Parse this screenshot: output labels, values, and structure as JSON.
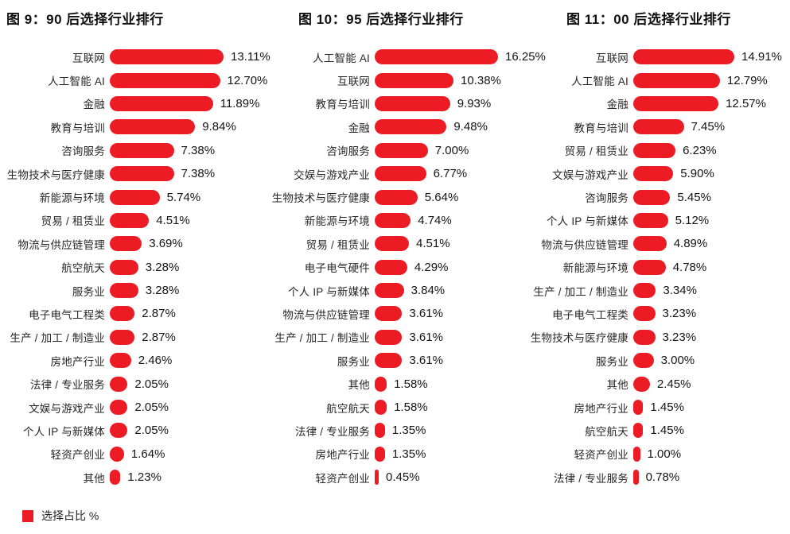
{
  "colors": {
    "bar_red": "#ed1c24",
    "title_text": "#111111",
    "label_text": "#272727",
    "value_text": "#141414"
  },
  "legend": {
    "label": "选择占比 %"
  },
  "chart_data": [
    {
      "type": "bar",
      "orientation": "horizontal",
      "title": "图 9：90 后选择行业排行",
      "unit": "%",
      "xlim": [
        0,
        13.11
      ],
      "grid": false,
      "categories": [
        "互联网",
        "人工智能 AI",
        "金融",
        "教育与培训",
        "咨询服务",
        "生物技术与医疗健康",
        "新能源与环境",
        "贸易 / 租赁业",
        "物流与供应链管理",
        "航空航天",
        "服务业",
        "电子电气工程类",
        "生产 / 加工 / 制造业",
        "房地产行业",
        "法律 / 专业服务",
        "文娱与游戏产业",
        "个人 IP 与新媒体",
        "轻资产创业",
        "其他"
      ],
      "values": [
        13.11,
        12.7,
        11.89,
        9.84,
        7.38,
        7.38,
        5.74,
        4.51,
        3.69,
        3.28,
        3.28,
        2.87,
        2.87,
        2.46,
        2.05,
        2.05,
        2.05,
        1.64,
        1.23
      ],
      "value_labels": [
        "13.11%",
        "12.70%",
        "11.89%",
        "9.84%",
        "7.38%",
        "7.38%",
        "5.74%",
        "4.51%",
        "3.69%",
        "3.28%",
        "3.28%",
        "2.87%",
        "2.87%",
        "2.46%",
        "2.05%",
        "2.05%",
        "2.05%",
        "1.64%",
        "1.23%"
      ]
    },
    {
      "type": "bar",
      "orientation": "horizontal",
      "title": "图 10：95 后选择行业排行",
      "unit": "%",
      "xlim": [
        0,
        16.25
      ],
      "grid": false,
      "categories": [
        "人工智能 AI",
        "互联网",
        "教育与培训",
        "金融",
        "咨询服务",
        "交娱与游戏产业",
        "生物技术与医疗健康",
        "新能源与环境",
        "贸易 / 租赁业",
        "电子电气硬件",
        "个人 IP 与新媒体",
        "物流与供应链管理",
        "生产 / 加工 / 制造业",
        "服务业",
        "其他",
        "航空航天",
        "法律 / 专业服务",
        "房地产行业",
        "轻资产创业"
      ],
      "values": [
        16.25,
        10.38,
        9.93,
        9.48,
        7.0,
        6.77,
        5.64,
        4.74,
        4.51,
        4.29,
        3.84,
        3.61,
        3.61,
        3.61,
        1.58,
        1.58,
        1.35,
        1.35,
        0.45
      ],
      "value_labels": [
        "16.25%",
        "10.38%",
        "9.93%",
        "9.48%",
        "7.00%",
        "6.77%",
        "5.64%",
        "4.74%",
        "4.51%",
        "4.29%",
        "3.84%",
        "3.61%",
        "3.61%",
        "3.61%",
        "1.58%",
        "1.58%",
        "1.35%",
        "1.35%",
        "0.45%"
      ]
    },
    {
      "type": "bar",
      "orientation": "horizontal",
      "title": "图 11：00 后选择行业排行",
      "unit": "%",
      "xlim": [
        0,
        14.91
      ],
      "grid": false,
      "categories": [
        "互联网",
        "人工智能 AI",
        "金融",
        "教育与培训",
        "贸易 / 租赁业",
        "文娱与游戏产业",
        "咨询服务",
        "个人 IP 与新媒体",
        "物流与供应链管理",
        "新能源与环境",
        "生产 / 加工 / 制造业",
        "电子电气工程类",
        "生物技术与医疗健康",
        "服务业",
        "其他",
        "房地产行业",
        "航空航天",
        "轻资产创业",
        "法律 / 专业服务"
      ],
      "values": [
        14.91,
        12.79,
        12.57,
        7.45,
        6.23,
        5.9,
        5.45,
        5.12,
        4.89,
        4.78,
        3.34,
        3.23,
        3.23,
        3.0,
        2.45,
        1.45,
        1.45,
        1.0,
        0.78
      ],
      "value_labels": [
        "14.91%",
        "12.79%",
        "12.57%",
        "7.45%",
        "6.23%",
        "5.90%",
        "5.45%",
        "5.12%",
        "4.89%",
        "4.78%",
        "3.34%",
        "3.23%",
        "3.23%",
        "3.00%",
        "2.45%",
        "1.45%",
        "1.45%",
        "1.00%",
        "0.78%"
      ]
    }
  ]
}
